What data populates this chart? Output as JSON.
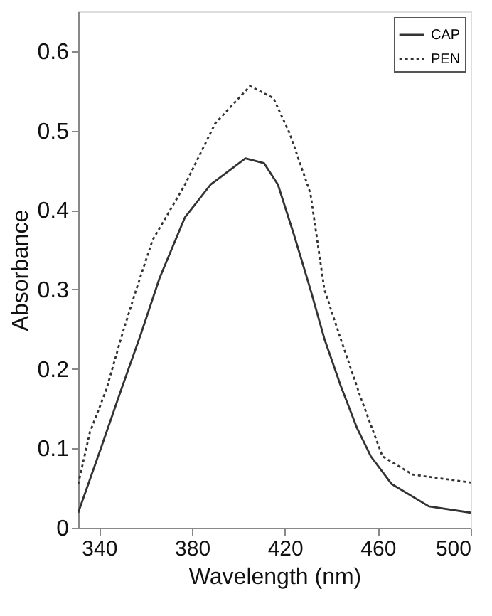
{
  "chart_data": {
    "type": "line",
    "xlabel": "Wavelength (nm)",
    "ylabel": "Absorbance",
    "xlim": [
      331,
      500
    ],
    "xticks": [
      340,
      380,
      420,
      460,
      500
    ],
    "ylim": [
      0,
      0.65
    ],
    "yticks": [
      0,
      0.1,
      0.2,
      0.3,
      0.4,
      0.5,
      0.6
    ],
    "grid": false,
    "legend": "top right",
    "marker": "none",
    "series": [
      {
        "name": "CAP",
        "color": "#333333",
        "line_style": "solid",
        "x": [
          331,
          341,
          350,
          358,
          366,
          377,
          388,
          403,
          411,
          417,
          424,
          431,
          437,
          444,
          451,
          457,
          466,
          482,
          500
        ],
        "values": [
          0.019,
          0.102,
          0.178,
          0.244,
          0.314,
          0.391,
          0.432,
          0.465,
          0.459,
          0.432,
          0.368,
          0.3,
          0.238,
          0.179,
          0.126,
          0.09,
          0.055,
          0.027,
          0.019
        ]
      },
      {
        "name": "PEN",
        "color": "#333333",
        "line_style": "dotted",
        "x": [
          331,
          336,
          343,
          350,
          356,
          363,
          377,
          390,
          405,
          415,
          422,
          431,
          437,
          444,
          453,
          462,
          475,
          500
        ],
        "values": [
          0.055,
          0.12,
          0.173,
          0.244,
          0.3,
          0.362,
          0.432,
          0.509,
          0.556,
          0.541,
          0.497,
          0.421,
          0.3,
          0.238,
          0.161,
          0.09,
          0.067,
          0.057
        ]
      }
    ]
  }
}
